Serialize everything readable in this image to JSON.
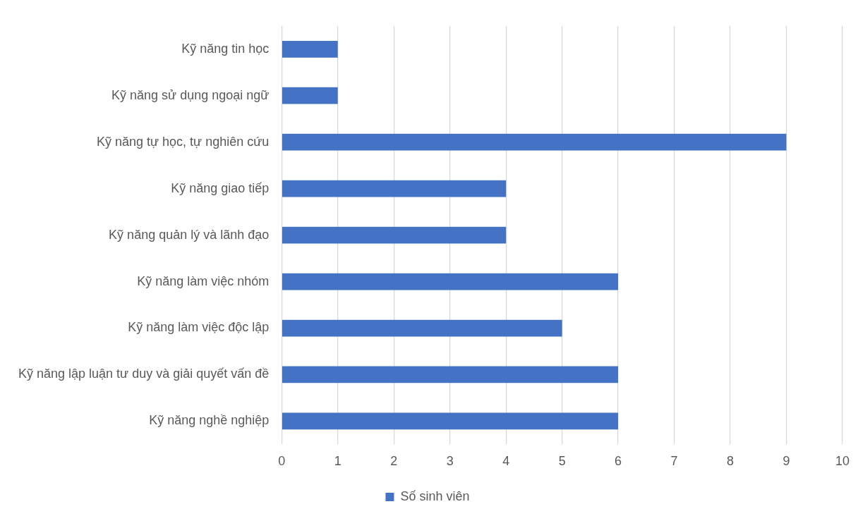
{
  "chart_data": {
    "type": "bar",
    "orientation": "horizontal",
    "categories": [
      "Kỹ năng tin học",
      "Kỹ năng sử dụng ngoại ngữ",
      "Kỹ năng tự học, tự nghiên cứu",
      "Kỹ năng giao tiếp",
      "Kỹ năng quản lý và lãnh đạo",
      "Kỹ năng làm việc nhóm",
      "Kỹ năng làm việc độc lập",
      "Kỹ năng lập luận tư duy và giải quyết vấn đề",
      "Kỹ năng nghề nghiệp"
    ],
    "series": [
      {
        "name": "Số sinh viên",
        "color": "#4472c4",
        "values": [
          1,
          1,
          9,
          4,
          4,
          6,
          5,
          6,
          6
        ]
      }
    ],
    "xlim": [
      0,
      10
    ],
    "xticks": [
      0,
      1,
      2,
      3,
      4,
      5,
      6,
      7,
      8,
      9,
      10
    ],
    "grid": "x",
    "legend": "bottom"
  }
}
